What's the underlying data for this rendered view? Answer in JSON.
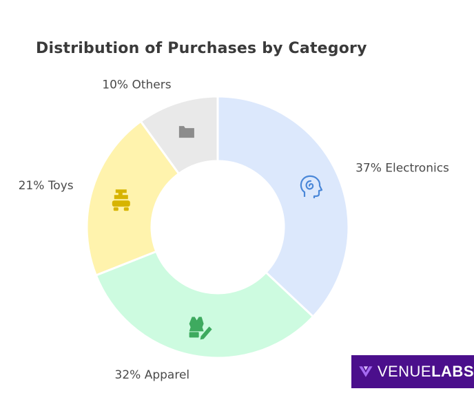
{
  "chart_data": {
    "type": "donut",
    "title": "Distribution of Purchases by Category",
    "slices": [
      {
        "label": "Electronics",
        "value": 37,
        "display": "37% Electronics",
        "color": "#dce8fc",
        "icon": "brain-head-icon",
        "icon_color": "#4a87d8"
      },
      {
        "label": "Apparel",
        "value": 32,
        "display": "32% Apparel",
        "color": "#cdfbe0",
        "icon": "apparel-icon",
        "icon_color": "#3eaa5f"
      },
      {
        "label": "Toys",
        "value": 21,
        "display": "21% Toys",
        "color": "#fff3ad",
        "icon": "toy-icon",
        "icon_color": "#d7b400"
      },
      {
        "label": "Others",
        "value": 10,
        "display": "10% Others",
        "color": "#e9e9e9",
        "icon": "folder-icon",
        "icon_color": "#8c8c8c"
      }
    ],
    "start_angle_deg": 0,
    "direction": "clockwise"
  },
  "brand": {
    "name_part1": "VENUE",
    "name_part2": "LABS",
    "background": "#4b0f8c",
    "mark_color": "#a56bf2"
  }
}
